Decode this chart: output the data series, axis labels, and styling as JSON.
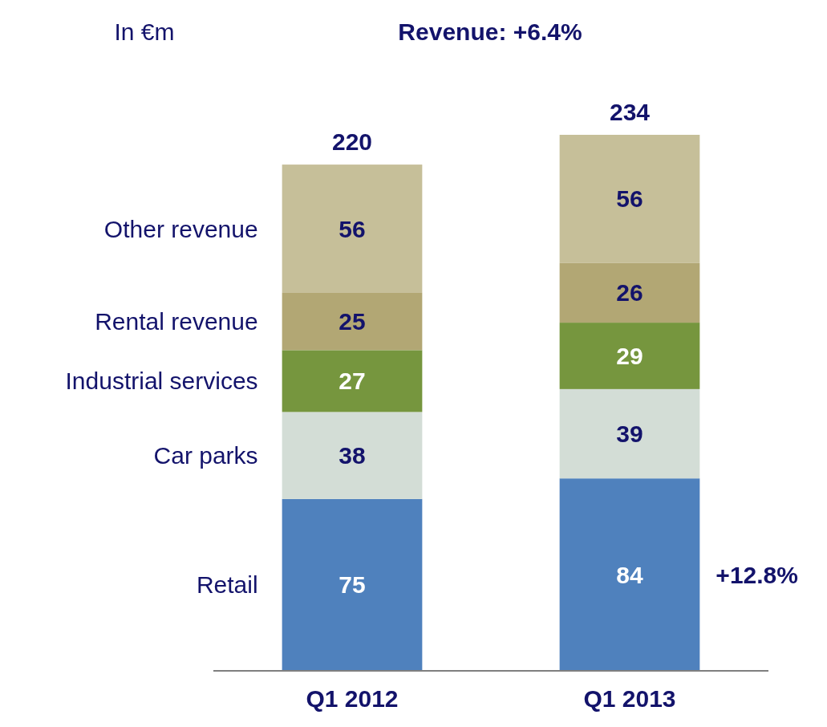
{
  "chart_data": {
    "type": "bar",
    "stacked": true,
    "title": "Revenue: +6.4%",
    "ylabel": "In €m",
    "categories": [
      "Q1 2012",
      "Q1 2013"
    ],
    "series": [
      {
        "name": "Retail",
        "color": "#4f81bd",
        "values": [
          75,
          84
        ]
      },
      {
        "name": "Car parks",
        "color": "#d3ddd6",
        "values": [
          38,
          39
        ]
      },
      {
        "name": "Industrial services",
        "color": "#76963e",
        "values": [
          27,
          29
        ]
      },
      {
        "name": "Rental revenue",
        "color": "#b2a774",
        "values": [
          25,
          26
        ]
      },
      {
        "name": "Other revenue",
        "color": "#c6bf99",
        "values": [
          56,
          56
        ]
      }
    ],
    "data_labels": true,
    "totals": [
      "220",
      "234"
    ],
    "legend": "left",
    "annotations": [
      "+12.8%"
    ]
  }
}
